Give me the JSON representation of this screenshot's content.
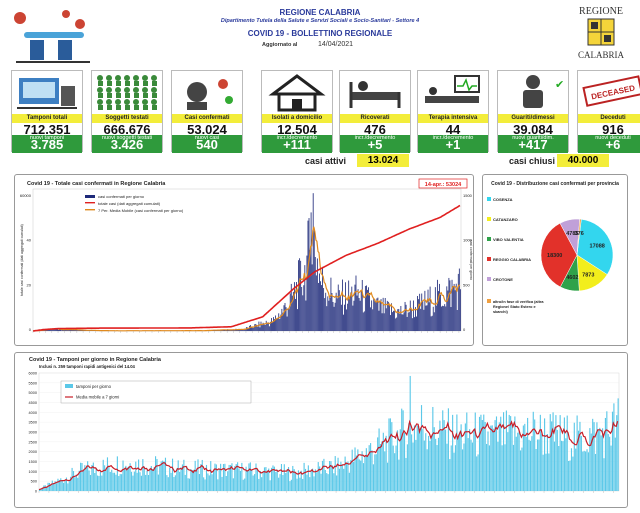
{
  "header": {
    "title": "REGIONE CALABRIA",
    "dept": "Dipartimento Tutela della Salute e Servizi Sociali e Socio-Sanitari - Settore 4",
    "bulletin": "COVID 19 - BOLLETTINO REGIONALE",
    "updated_label": "Aggiornato al",
    "updated_date": "14/04/2021",
    "region_logo_text": "REGIONE",
    "region_logo_sub": "CALABRIA"
  },
  "cards": [
    {
      "label": "Tamponi totali",
      "value": "712.351",
      "sub": "nuovi tamponi",
      "subvalue": "3.785",
      "icon": "test-lab-icon"
    },
    {
      "label": "Soggetti testati",
      "value": "666.676",
      "sub": "nuovi soggetti testati",
      "subvalue": "3.426",
      "icon": "crowd-icon"
    },
    {
      "label": "Casi confermati",
      "value": "53.024",
      "sub": "nuovi casi",
      "subvalue": "540",
      "icon": "virus-patient-icon"
    },
    {
      "label": "Isolati a domicilio",
      "value": "12.504",
      "sub": "incr./decremento",
      "subvalue": "+111",
      "icon": "house-icon"
    },
    {
      "label": "Ricoverati",
      "value": "476",
      "sub": "incr./decremento",
      "subvalue": "+5",
      "icon": "hospital-bed-icon"
    },
    {
      "label": "Terapia intensiva",
      "value": "44",
      "sub": "incr./decremento",
      "subvalue": "+1",
      "icon": "intensive-care-icon"
    },
    {
      "label": "Guariti/dimessi",
      "value": "39.084",
      "sub": "nuovi guariti/dim.",
      "subvalue": "+417",
      "icon": "recovered-icon"
    },
    {
      "label": "Deceduti",
      "value": "916",
      "sub": "nuovi deceduti",
      "subvalue": "+6",
      "icon": "deceased-stamp-icon"
    }
  ],
  "stamp_text": "DECEASED",
  "casi_attivi": {
    "label": "casi attivi",
    "value": "13.024"
  },
  "casi_chiusi": {
    "label": "casi chiusi",
    "value": "40.000"
  },
  "chart_data": [
    {
      "type": "bar",
      "title": "Covid 19 - Totale casi confermati in Regione Calabria",
      "callout": "14-apr.: 53024",
      "legend": [
        "casi confermati per giorno",
        "totale casi (dati aggregati cumulati)",
        "7 Per. Media Mobile (casi confermati per giorno)"
      ],
      "ylabel_left": "totale casi confermati (dati aggregati cumulati)",
      "ylabel_right": "casi confermati per giorno",
      "yticks_left": [
        "60000",
        "40",
        "20",
        "0"
      ],
      "yticks_right": [
        "1500",
        "1000",
        "500",
        "0"
      ],
      "x_range": [
        "2020-03-01",
        "2021-04-14"
      ],
      "y_left_max": 60000,
      "y_right_max": 1700,
      "colors": {
        "bars": "#1e2a7a",
        "cumulative": "#e02020",
        "moving_avg": "#e08a1e"
      },
      "cumulative_keypoints": [
        [
          0,
          0
        ],
        [
          10,
          600
        ],
        [
          25,
          1050
        ],
        [
          60,
          1200
        ],
        [
          150,
          1300
        ],
        [
          190,
          1800
        ],
        [
          220,
          6000
        ],
        [
          250,
          18000
        ],
        [
          270,
          25000
        ],
        [
          300,
          32000
        ],
        [
          330,
          37000
        ],
        [
          360,
          43000
        ],
        [
          390,
          48000
        ],
        [
          409,
          53024
        ]
      ],
      "daily_profile": [
        [
          0,
          2
        ],
        [
          20,
          25
        ],
        [
          40,
          12
        ],
        [
          80,
          3
        ],
        [
          160,
          4
        ],
        [
          200,
          20
        ],
        [
          230,
          120
        ],
        [
          245,
          330
        ],
        [
          260,
          700
        ],
        [
          268,
          1150
        ],
        [
          275,
          600
        ],
        [
          290,
          380
        ],
        [
          310,
          450
        ],
        [
          330,
          280
        ],
        [
          350,
          220
        ],
        [
          370,
          300
        ],
        [
          390,
          420
        ],
        [
          409,
          540
        ]
      ]
    },
    {
      "type": "pie",
      "title": "Covid 19 - Distribuzione casi confermati per provincia",
      "slices": [
        {
          "name": "COSENZA",
          "value": 17088,
          "color": "#33d6ee"
        },
        {
          "name": "CATANZARO",
          "value": 7873,
          "color": "#f2ee1c"
        },
        {
          "name": "VIBO VALENTIA",
          "value": 4602,
          "color": "#2fa24a"
        },
        {
          "name": "REGGIO CALABRIA",
          "value": 18300,
          "color": "#e2312a"
        },
        {
          "name": "CROTONE",
          "value": 4785,
          "color": "#c0a0d8"
        },
        {
          "name": "altro/in fase di verifica (altra Regione/ Stato Estero e sbarchi)",
          "value": 376,
          "color": "#f0a040"
        }
      ],
      "labels": [
        "17088",
        "7873",
        "4602",
        "18300",
        "4785",
        "376"
      ],
      "legend": [
        "COSENZA",
        "CATANZARO",
        "VIBO VALENTIA",
        "REGGIO CALABRIA",
        "CROTONE",
        "altro/in fase di verifica (altra Regione/ Stato Estero e sbarchi)"
      ]
    },
    {
      "type": "bar",
      "title": "Covid 19 - Tamponi per giorno in Regione Calabria",
      "subtitle": "Inclusi n. 259  tamponi rapidi antigenici del 14.04",
      "legend": [
        "tamponi per giorno",
        "Media mobile a 7 giorni"
      ],
      "yticks": [
        "6000",
        "5500",
        "5000",
        "4500",
        "4000",
        "3500",
        "3000",
        "2500",
        "2000",
        "1500",
        "1000",
        "500",
        "0"
      ],
      "y_max": 6000,
      "x_range": [
        "2020-03-01",
        "2021-04-14"
      ],
      "colors": {
        "bars": "#5bc8e8",
        "moving_avg": "#c81e28"
      },
      "profile": [
        [
          0,
          100
        ],
        [
          30,
          1000
        ],
        [
          60,
          1400
        ],
        [
          100,
          1100
        ],
        [
          150,
          1000
        ],
        [
          180,
          900
        ],
        [
          210,
          1200
        ],
        [
          240,
          2200
        ],
        [
          260,
          3000
        ],
        [
          270,
          3300
        ],
        [
          290,
          2800
        ],
        [
          320,
          2700
        ],
        [
          350,
          2900
        ],
        [
          380,
          2600
        ],
        [
          400,
          2900
        ],
        [
          409,
          3400
        ]
      ]
    }
  ]
}
